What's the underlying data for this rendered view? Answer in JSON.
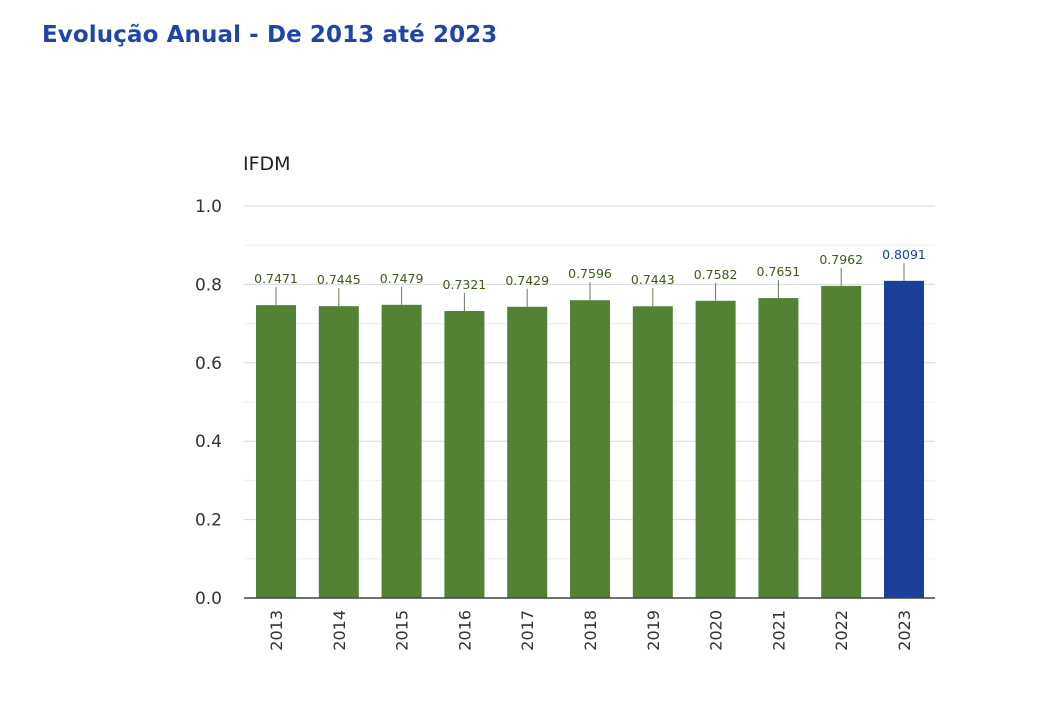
{
  "page": {
    "title": "Evolução Anual - De 2013 até 2023"
  },
  "colors": {
    "title": "#1f45a8",
    "bar_default": "#548235",
    "bar_highlight": "#1a3f96",
    "label_default": "#3d5a1e",
    "label_highlight": "#1a3f96",
    "grid_major": "#d9d9d9",
    "grid_minor": "#eeeeee",
    "axis": "#444444",
    "text": "#333333"
  },
  "chart_data": {
    "type": "bar",
    "title": "",
    "xlabel": "",
    "ylabel": "IFDM",
    "ylim": [
      0,
      1.0
    ],
    "y_ticks": [
      "0.0",
      "0.2",
      "0.4",
      "0.6",
      "0.8",
      "1.0"
    ],
    "grid": true,
    "categories": [
      "2013",
      "2014",
      "2015",
      "2016",
      "2017",
      "2018",
      "2019",
      "2020",
      "2021",
      "2022",
      "2023"
    ],
    "values": [
      0.7471,
      0.7445,
      0.7479,
      0.7321,
      0.7429,
      0.7596,
      0.7443,
      0.7582,
      0.7651,
      0.7962,
      0.8091
    ],
    "value_labels": [
      "0.7471",
      "0.7445",
      "0.7479",
      "0.7321",
      "0.7429",
      "0.7596",
      "0.7443",
      "0.7582",
      "0.7651",
      "0.7962",
      "0.8091"
    ],
    "highlight_category": "2023"
  }
}
